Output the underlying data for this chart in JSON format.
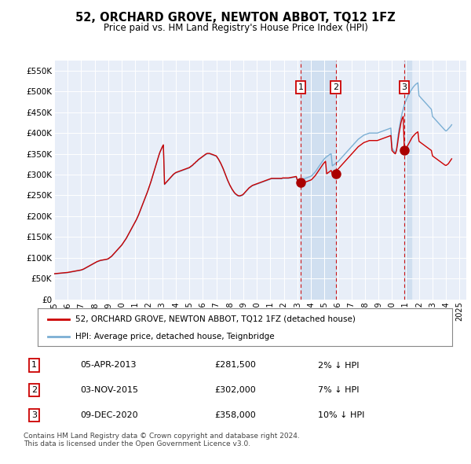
{
  "title": "52, ORCHARD GROVE, NEWTON ABBOT, TQ12 1FZ",
  "subtitle": "Price paid vs. HM Land Registry's House Price Index (HPI)",
  "ylim": [
    0,
    575000
  ],
  "yticks": [
    0,
    50000,
    100000,
    150000,
    200000,
    250000,
    300000,
    350000,
    400000,
    450000,
    500000,
    550000
  ],
  "ytick_labels": [
    "£0",
    "£50K",
    "£100K",
    "£150K",
    "£200K",
    "£250K",
    "£300K",
    "£350K",
    "£400K",
    "£450K",
    "£500K",
    "£550K"
  ],
  "xlim_start": 1995.0,
  "xlim_end": 2025.5,
  "background_color": "#ffffff",
  "plot_bg_color": "#e8eef8",
  "grid_color": "#ffffff",
  "sale_color": "#cc0000",
  "hpi_color": "#7bafd4",
  "shade_color": "#d0dff0",
  "sale_marker_color": "#aa0000",
  "annotation_box_color": "#cc0000",
  "dashed_line_color": "#cc0000",
  "legend_sale_label": "52, ORCHARD GROVE, NEWTON ABBOT, TQ12 1FZ (detached house)",
  "legend_hpi_label": "HPI: Average price, detached house, Teignbridge",
  "footnote": "Contains HM Land Registry data © Crown copyright and database right 2024.\nThis data is licensed under the Open Government Licence v3.0.",
  "sales": [
    {
      "num": 1,
      "date_num": 2013.25,
      "price": 281500,
      "label": "05-APR-2013",
      "price_label": "£281,500",
      "pct_label": "2% ↓ HPI"
    },
    {
      "num": 2,
      "date_num": 2015.84,
      "price": 302000,
      "label": "03-NOV-2015",
      "price_label": "£302,000",
      "pct_label": "7% ↓ HPI"
    },
    {
      "num": 3,
      "date_num": 2020.92,
      "price": 358000,
      "label": "09-DEC-2020",
      "price_label": "£358,000",
      "pct_label": "10% ↓ HPI"
    }
  ],
  "hpi_years": [
    1995,
    1995.083,
    1995.167,
    1995.25,
    1995.333,
    1995.417,
    1995.5,
    1995.583,
    1995.667,
    1995.75,
    1995.833,
    1995.917,
    1996,
    1996.083,
    1996.167,
    1996.25,
    1996.333,
    1996.417,
    1996.5,
    1996.583,
    1996.667,
    1996.75,
    1996.833,
    1996.917,
    1997,
    1997.083,
    1997.167,
    1997.25,
    1997.333,
    1997.417,
    1997.5,
    1997.583,
    1997.667,
    1997.75,
    1997.833,
    1997.917,
    1998,
    1998.083,
    1998.167,
    1998.25,
    1998.333,
    1998.417,
    1998.5,
    1998.583,
    1998.667,
    1998.75,
    1998.833,
    1998.917,
    1999,
    1999.083,
    1999.167,
    1999.25,
    1999.333,
    1999.417,
    1999.5,
    1999.583,
    1999.667,
    1999.75,
    1999.833,
    1999.917,
    2000,
    2000.083,
    2000.167,
    2000.25,
    2000.333,
    2000.417,
    2000.5,
    2000.583,
    2000.667,
    2000.75,
    2000.833,
    2000.917,
    2001,
    2001.083,
    2001.167,
    2001.25,
    2001.333,
    2001.417,
    2001.5,
    2001.583,
    2001.667,
    2001.75,
    2001.833,
    2001.917,
    2002,
    2002.083,
    2002.167,
    2002.25,
    2002.333,
    2002.417,
    2002.5,
    2002.583,
    2002.667,
    2002.75,
    2002.833,
    2002.917,
    2003,
    2003.083,
    2003.167,
    2003.25,
    2003.333,
    2003.417,
    2003.5,
    2003.583,
    2003.667,
    2003.75,
    2003.833,
    2003.917,
    2004,
    2004.083,
    2004.167,
    2004.25,
    2004.333,
    2004.417,
    2004.5,
    2004.583,
    2004.667,
    2004.75,
    2004.833,
    2004.917,
    2005,
    2005.083,
    2005.167,
    2005.25,
    2005.333,
    2005.417,
    2005.5,
    2005.583,
    2005.667,
    2005.75,
    2005.833,
    2005.917,
    2006,
    2006.083,
    2006.167,
    2006.25,
    2006.333,
    2006.417,
    2006.5,
    2006.583,
    2006.667,
    2006.75,
    2006.833,
    2006.917,
    2007,
    2007.083,
    2007.167,
    2007.25,
    2007.333,
    2007.417,
    2007.5,
    2007.583,
    2007.667,
    2007.75,
    2007.833,
    2007.917,
    2008,
    2008.083,
    2008.167,
    2008.25,
    2008.333,
    2008.417,
    2008.5,
    2008.583,
    2008.667,
    2008.75,
    2008.833,
    2008.917,
    2009,
    2009.083,
    2009.167,
    2009.25,
    2009.333,
    2009.417,
    2009.5,
    2009.583,
    2009.667,
    2009.75,
    2009.833,
    2009.917,
    2010,
    2010.083,
    2010.167,
    2010.25,
    2010.333,
    2010.417,
    2010.5,
    2010.583,
    2010.667,
    2010.75,
    2010.833,
    2010.917,
    2011,
    2011.083,
    2011.167,
    2011.25,
    2011.333,
    2011.417,
    2011.5,
    2011.583,
    2011.667,
    2011.75,
    2011.833,
    2011.917,
    2012,
    2012.083,
    2012.167,
    2012.25,
    2012.333,
    2012.417,
    2012.5,
    2012.583,
    2012.667,
    2012.75,
    2012.833,
    2012.917,
    2013,
    2013.083,
    2013.167,
    2013.25,
    2013.333,
    2013.417,
    2013.5,
    2013.583,
    2013.667,
    2013.75,
    2013.833,
    2013.917,
    2014,
    2014.083,
    2014.167,
    2014.25,
    2014.333,
    2014.417,
    2014.5,
    2014.583,
    2014.667,
    2014.75,
    2014.833,
    2014.917,
    2015,
    2015.083,
    2015.167,
    2015.25,
    2015.333,
    2015.417,
    2015.5,
    2015.583,
    2015.667,
    2015.75,
    2015.833,
    2015.917,
    2016,
    2016.083,
    2016.167,
    2016.25,
    2016.333,
    2016.417,
    2016.5,
    2016.583,
    2016.667,
    2016.75,
    2016.833,
    2016.917,
    2017,
    2017.083,
    2017.167,
    2017.25,
    2017.333,
    2017.417,
    2017.5,
    2017.583,
    2017.667,
    2017.75,
    2017.833,
    2017.917,
    2018,
    2018.083,
    2018.167,
    2018.25,
    2018.333,
    2018.417,
    2018.5,
    2018.583,
    2018.667,
    2018.75,
    2018.833,
    2018.917,
    2019,
    2019.083,
    2019.167,
    2019.25,
    2019.333,
    2019.417,
    2019.5,
    2019.583,
    2019.667,
    2019.75,
    2019.833,
    2019.917,
    2020,
    2020.083,
    2020.167,
    2020.25,
    2020.333,
    2020.417,
    2020.5,
    2020.583,
    2020.667,
    2020.75,
    2020.833,
    2020.917,
    2021,
    2021.083,
    2021.167,
    2021.25,
    2021.333,
    2021.417,
    2021.5,
    2021.583,
    2021.667,
    2021.75,
    2021.833,
    2021.917,
    2022,
    2022.083,
    2022.167,
    2022.25,
    2022.333,
    2022.417,
    2022.5,
    2022.583,
    2022.667,
    2022.75,
    2022.833,
    2022.917,
    2023,
    2023.083,
    2023.167,
    2023.25,
    2023.333,
    2023.417,
    2023.5,
    2023.583,
    2023.667,
    2023.75,
    2023.833,
    2023.917,
    2024,
    2024.083,
    2024.167,
    2024.25,
    2024.333,
    2024.417
  ],
  "hpi_values": [
    61000,
    61200,
    61500,
    61800,
    62000,
    62200,
    62500,
    62700,
    63000,
    63200,
    63500,
    63700,
    64000,
    64500,
    65000,
    65500,
    66000,
    66500,
    67000,
    67500,
    68000,
    68500,
    69000,
    69500,
    70000,
    71000,
    72000,
    73500,
    75000,
    76500,
    78000,
    79500,
    81000,
    82500,
    84000,
    85500,
    87000,
    88500,
    90000,
    91000,
    92000,
    93000,
    93500,
    94000,
    94500,
    95000,
    95500,
    96000,
    97000,
    99000,
    101000,
    103000,
    106000,
    109000,
    112000,
    115000,
    118000,
    121000,
    124000,
    127000,
    130000,
    134000,
    138000,
    142000,
    146000,
    151000,
    156000,
    161000,
    166000,
    171000,
    176000,
    181000,
    186000,
    191000,
    197000,
    203000,
    210000,
    217000,
    224000,
    231000,
    238000,
    245000,
    252000,
    259000,
    267000,
    275000,
    283000,
    292000,
    301000,
    310000,
    319000,
    328000,
    337000,
    346000,
    354000,
    360000,
    366000,
    371000,
    276000,
    279000,
    282000,
    285000,
    288000,
    291000,
    294000,
    297000,
    300000,
    302000,
    304000,
    305000,
    306000,
    307000,
    308000,
    309000,
    310000,
    311000,
    312000,
    313000,
    314000,
    315000,
    316000,
    318000,
    320000,
    322000,
    325000,
    327000,
    330000,
    332000,
    335000,
    337000,
    339000,
    341000,
    343000,
    345000,
    347000,
    349000,
    350000,
    350000,
    350000,
    349000,
    348000,
    347000,
    346000,
    345000,
    344000,
    340000,
    336000,
    331000,
    326000,
    320000,
    314000,
    307000,
    300000,
    293000,
    286000,
    280000,
    274000,
    269000,
    264000,
    260000,
    256000,
    253000,
    251000,
    249000,
    248000,
    248000,
    249000,
    250000,
    252000,
    255000,
    258000,
    261000,
    264000,
    267000,
    269000,
    271000,
    273000,
    274000,
    275000,
    276000,
    277000,
    278000,
    279000,
    280000,
    281000,
    282000,
    283000,
    284000,
    285000,
    286000,
    287000,
    288000,
    289000,
    290000,
    290000,
    290000,
    290000,
    290000,
    290000,
    290000,
    290000,
    290000,
    290000,
    291000,
    291000,
    291000,
    291000,
    291000,
    291000,
    291500,
    292000,
    292500,
    293000,
    293500,
    294000,
    294500,
    285000,
    285500,
    286000,
    287000,
    288000,
    289000,
    290000,
    291000,
    292000,
    293000,
    294000,
    295000,
    296000,
    298000,
    301000,
    304000,
    307000,
    311000,
    315000,
    319000,
    323000,
    327000,
    331000,
    335000,
    338000,
    341000,
    343000,
    345000,
    347000,
    349000,
    350000,
    321000,
    323000,
    325000,
    327000,
    329000,
    331000,
    334000,
    337000,
    340000,
    343000,
    346000,
    349000,
    352000,
    355000,
    358000,
    361000,
    364000,
    367000,
    370000,
    373000,
    376000,
    379000,
    382000,
    385000,
    387000,
    389000,
    391000,
    393000,
    395000,
    396000,
    397000,
    398000,
    399000,
    400000,
    400000,
    400000,
    400000,
    400000,
    400000,
    400000,
    400000,
    401000,
    402000,
    403000,
    404000,
    405000,
    406000,
    407000,
    408000,
    409000,
    410000,
    411000,
    412000,
    365000,
    360000,
    356000,
    352000,
    360000,
    385000,
    405000,
    420000,
    435000,
    448000,
    458000,
    468000,
    475000,
    482000,
    488000,
    494000,
    498000,
    503000,
    507000,
    511000,
    514000,
    517000,
    519000,
    521000,
    490000,
    487000,
    484000,
    481000,
    478000,
    475000,
    472000,
    469000,
    466000,
    463000,
    460000,
    457000,
    440000,
    437000,
    434000,
    431000,
    428000,
    425000,
    422000,
    419000,
    416000,
    413000,
    410000,
    407000,
    405000,
    407000,
    410000,
    413000,
    416000,
    420000
  ],
  "red_years": [
    1995,
    1995.083,
    1995.167,
    1995.25,
    1995.333,
    1995.417,
    1995.5,
    1995.583,
    1995.667,
    1995.75,
    1995.833,
    1995.917,
    1996,
    1996.083,
    1996.167,
    1996.25,
    1996.333,
    1996.417,
    1996.5,
    1996.583,
    1996.667,
    1996.75,
    1996.833,
    1996.917,
    1997,
    1997.083,
    1997.167,
    1997.25,
    1997.333,
    1997.417,
    1997.5,
    1997.583,
    1997.667,
    1997.75,
    1997.833,
    1997.917,
    1998,
    1998.083,
    1998.167,
    1998.25,
    1998.333,
    1998.417,
    1998.5,
    1998.583,
    1998.667,
    1998.75,
    1998.833,
    1998.917,
    1999,
    1999.083,
    1999.167,
    1999.25,
    1999.333,
    1999.417,
    1999.5,
    1999.583,
    1999.667,
    1999.75,
    1999.833,
    1999.917,
    2000,
    2000.083,
    2000.167,
    2000.25,
    2000.333,
    2000.417,
    2000.5,
    2000.583,
    2000.667,
    2000.75,
    2000.833,
    2000.917,
    2001,
    2001.083,
    2001.167,
    2001.25,
    2001.333,
    2001.417,
    2001.5,
    2001.583,
    2001.667,
    2001.75,
    2001.833,
    2001.917,
    2002,
    2002.083,
    2002.167,
    2002.25,
    2002.333,
    2002.417,
    2002.5,
    2002.583,
    2002.667,
    2002.75,
    2002.833,
    2002.917,
    2003,
    2003.083,
    2003.167,
    2003.25,
    2003.333,
    2003.417,
    2003.5,
    2003.583,
    2003.667,
    2003.75,
    2003.833,
    2003.917,
    2004,
    2004.083,
    2004.167,
    2004.25,
    2004.333,
    2004.417,
    2004.5,
    2004.583,
    2004.667,
    2004.75,
    2004.833,
    2004.917,
    2005,
    2005.083,
    2005.167,
    2005.25,
    2005.333,
    2005.417,
    2005.5,
    2005.583,
    2005.667,
    2005.75,
    2005.833,
    2005.917,
    2006,
    2006.083,
    2006.167,
    2006.25,
    2006.333,
    2006.417,
    2006.5,
    2006.583,
    2006.667,
    2006.75,
    2006.833,
    2006.917,
    2007,
    2007.083,
    2007.167,
    2007.25,
    2007.333,
    2007.417,
    2007.5,
    2007.583,
    2007.667,
    2007.75,
    2007.833,
    2007.917,
    2008,
    2008.083,
    2008.167,
    2008.25,
    2008.333,
    2008.417,
    2008.5,
    2008.583,
    2008.667,
    2008.75,
    2008.833,
    2008.917,
    2009,
    2009.083,
    2009.167,
    2009.25,
    2009.333,
    2009.417,
    2009.5,
    2009.583,
    2009.667,
    2009.75,
    2009.833,
    2009.917,
    2010,
    2010.083,
    2010.167,
    2010.25,
    2010.333,
    2010.417,
    2010.5,
    2010.583,
    2010.667,
    2010.75,
    2010.833,
    2010.917,
    2011,
    2011.083,
    2011.167,
    2011.25,
    2011.333,
    2011.417,
    2011.5,
    2011.583,
    2011.667,
    2011.75,
    2011.833,
    2011.917,
    2012,
    2012.083,
    2012.167,
    2012.25,
    2012.333,
    2012.417,
    2012.5,
    2012.583,
    2012.667,
    2012.75,
    2012.833,
    2012.917,
    2013,
    2013.083,
    2013.167,
    2013.25,
    2013.333,
    2013.417,
    2013.5,
    2013.583,
    2013.667,
    2013.75,
    2013.833,
    2013.917,
    2014,
    2014.083,
    2014.167,
    2014.25,
    2014.333,
    2014.417,
    2014.5,
    2014.583,
    2014.667,
    2014.75,
    2014.833,
    2014.917,
    2015,
    2015.083,
    2015.167,
    2015.25,
    2015.333,
    2015.417,
    2015.5,
    2015.583,
    2015.667,
    2015.75,
    2015.833,
    2015.917,
    2016,
    2016.083,
    2016.167,
    2016.25,
    2016.333,
    2016.417,
    2016.5,
    2016.583,
    2016.667,
    2016.75,
    2016.833,
    2016.917,
    2017,
    2017.083,
    2017.167,
    2017.25,
    2017.333,
    2017.417,
    2017.5,
    2017.583,
    2017.667,
    2017.75,
    2017.833,
    2017.917,
    2018,
    2018.083,
    2018.167,
    2018.25,
    2018.333,
    2018.417,
    2018.5,
    2018.583,
    2018.667,
    2018.75,
    2018.833,
    2018.917,
    2019,
    2019.083,
    2019.167,
    2019.25,
    2019.333,
    2019.417,
    2019.5,
    2019.583,
    2019.667,
    2019.75,
    2019.833,
    2019.917,
    2020,
    2020.083,
    2020.167,
    2020.25,
    2020.333,
    2020.417,
    2020.5,
    2020.583,
    2020.667,
    2020.75,
    2020.833,
    2020.917,
    2021,
    2021.083,
    2021.167,
    2021.25,
    2021.333,
    2021.417,
    2021.5,
    2021.583,
    2021.667,
    2021.75,
    2021.833,
    2021.917,
    2022,
    2022.083,
    2022.167,
    2022.25,
    2022.333,
    2022.417,
    2022.5,
    2022.583,
    2022.667,
    2022.75,
    2022.833,
    2022.917,
    2023,
    2023.083,
    2023.167,
    2023.25,
    2023.333,
    2023.417,
    2023.5,
    2023.583,
    2023.667,
    2023.75,
    2023.833,
    2023.917,
    2024,
    2024.083,
    2024.167,
    2024.25,
    2024.333,
    2024.417
  ],
  "red_values": [
    61500,
    61700,
    62000,
    62300,
    62600,
    62800,
    63100,
    63300,
    63600,
    63800,
    64100,
    64300,
    64600,
    65100,
    65600,
    66100,
    66600,
    67100,
    67600,
    68100,
    68600,
    69100,
    69600,
    70100,
    70600,
    71600,
    72600,
    74100,
    75600,
    77100,
    78600,
    80100,
    81600,
    83100,
    84600,
    86100,
    87600,
    89100,
    90600,
    91600,
    92600,
    93600,
    94100,
    94600,
    95100,
    95600,
    96100,
    96600,
    97600,
    99600,
    101600,
    103600,
    106600,
    109600,
    112600,
    115600,
    118600,
    121600,
    124600,
    127600,
    130600,
    134600,
    138600,
    142600,
    146600,
    151600,
    156600,
    161600,
    166600,
    171600,
    176600,
    181600,
    186600,
    191600,
    197600,
    203600,
    210600,
    217600,
    224600,
    231600,
    238600,
    245600,
    252600,
    259600,
    267600,
    275600,
    283600,
    292600,
    301600,
    310600,
    319600,
    328600,
    337600,
    346600,
    354600,
    360600,
    366600,
    371600,
    277000,
    280000,
    283000,
    286000,
    289000,
    292000,
    295000,
    298000,
    301000,
    303000,
    305000,
    306000,
    307000,
    308000,
    309000,
    310000,
    311000,
    312000,
    313000,
    314000,
    315000,
    316000,
    317000,
    319000,
    321000,
    323000,
    326000,
    328000,
    331000,
    333000,
    336000,
    338000,
    340000,
    342000,
    344000,
    346000,
    348000,
    350000,
    351000,
    351000,
    351000,
    350000,
    349000,
    348000,
    347000,
    346000,
    345000,
    341000,
    337000,
    332000,
    327000,
    321000,
    315000,
    308000,
    301000,
    294000,
    287000,
    281000,
    275000,
    270000,
    265000,
    261000,
    257000,
    254000,
    252000,
    250000,
    249000,
    249000,
    250000,
    251000,
    253000,
    256000,
    259000,
    262000,
    265000,
    268000,
    270000,
    272000,
    274000,
    275000,
    276000,
    277000,
    278000,
    279000,
    280000,
    281000,
    282000,
    283000,
    284000,
    285000,
    286000,
    287000,
    288000,
    289000,
    290000,
    291000,
    291000,
    291000,
    291000,
    291000,
    291000,
    291000,
    291000,
    291000,
    291000,
    292000,
    292000,
    292000,
    292000,
    292000,
    292000,
    292500,
    293000,
    293500,
    294000,
    294500,
    295000,
    295500,
    286000,
    286500,
    287000,
    288000,
    289000,
    290000,
    281500,
    282000,
    283000,
    284000,
    285000,
    286000,
    287000,
    289000,
    292000,
    295000,
    298000,
    302000,
    306000,
    310000,
    314000,
    318000,
    322000,
    326000,
    329000,
    332000,
    302000,
    304000,
    306000,
    308000,
    310000,
    302000,
    304000,
    306000,
    308000,
    310000,
    313000,
    316000,
    319000,
    322000,
    325000,
    328000,
    331000,
    334000,
    337000,
    340000,
    343000,
    346000,
    349000,
    352000,
    355000,
    358000,
    361000,
    364000,
    367000,
    369000,
    371000,
    373000,
    375000,
    377000,
    378000,
    379000,
    380000,
    381000,
    382000,
    382000,
    382000,
    382000,
    382000,
    382000,
    382000,
    382000,
    383000,
    384000,
    385000,
    386000,
    387000,
    388000,
    389000,
    390000,
    391000,
    392000,
    393000,
    394000,
    358000,
    355000,
    352000,
    350000,
    358000,
    375000,
    395000,
    410000,
    425000,
    435000,
    440000,
    358000,
    360000,
    365000,
    370000,
    375000,
    380000,
    385000,
    390000,
    393000,
    396000,
    399000,
    401000,
    403000,
    380000,
    378000,
    376000,
    374000,
    372000,
    370000,
    368000,
    366000,
    364000,
    362000,
    360000,
    358000,
    345000,
    343000,
    341000,
    339000,
    337000,
    335000,
    333000,
    331000,
    329000,
    327000,
    325000,
    323000,
    322000,
    324000,
    326000,
    330000,
    334000,
    338000
  ]
}
